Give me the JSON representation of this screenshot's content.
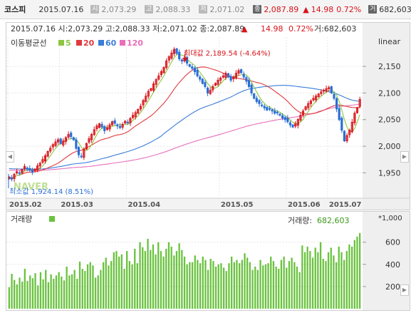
{
  "quote_bar": {
    "name": "코스피",
    "date": "2015.07.16",
    "items": [
      {
        "badge": "시",
        "value": "2,073.29"
      },
      {
        "badge": "고",
        "value": "2,088.33"
      },
      {
        "badge": "저",
        "value": "2,071.02"
      },
      {
        "badge": "종",
        "value": "2,087.89"
      }
    ],
    "change_arrow": "▲",
    "change": "14.98",
    "change_pct": "0.72%",
    "volume_badge": "거",
    "volume": "682,603"
  },
  "info_line": {
    "text": "2015.07.16  시:2,073.29  고:2,088.33  저:2,071.02  종:2,087.89",
    "arrow": "▲",
    "change": "14.98",
    "change_pct": "0.72%",
    "volume": "거:682,603"
  },
  "scale_label": "linear",
  "ma_legend": {
    "label": "이동평균선",
    "items": [
      {
        "name": "5",
        "color": "#8dc63f"
      },
      {
        "name": "20",
        "color": "#e03a3e"
      },
      {
        "name": "60",
        "color": "#3b7dd8"
      },
      {
        "name": "120",
        "color": "#e86fb9"
      }
    ]
  },
  "annotations": {
    "max": "최대값 2,189.54 (-4.64%)",
    "min": "최소값 1,924.14 (8.51%)",
    "watermark": "NAVER"
  },
  "volume_panel": {
    "title": "거래량",
    "current_label": "거래량:",
    "current_value": "682,603",
    "unit": "*1,000"
  },
  "colors": {
    "up": "#d8141b",
    "down": "#2a6fd6",
    "ma5": "#8dc63f",
    "ma20": "#e03a3e",
    "ma60": "#3b7dd8",
    "ma120": "#e86fb9",
    "volume_bar": "#6ac23f"
  },
  "chart_data": [
    {
      "type": "candlestick",
      "title": "",
      "x_tick_labels": [
        "2015.02",
        "2015.03",
        "2015.04",
        "2015.05",
        "2015.06",
        "2015.07"
      ],
      "y_ticks": [
        "1,950",
        "2,000",
        "2,050",
        "2,100",
        "2,150"
      ],
      "ylim": [
        1905,
        2205
      ],
      "grid": true,
      "series_close": [
        1942,
        1938,
        1947,
        1952,
        1950,
        1956,
        1962,
        1959,
        1955,
        1951,
        1957,
        1963,
        1968,
        1975,
        1982,
        1990,
        1996,
        2003,
        2008,
        2012,
        2005,
        2010,
        2016,
        2022,
        2018,
        2012,
        1996,
        1984,
        1980,
        1994,
        2005,
        2014,
        2022,
        2031,
        2038,
        2042,
        2036,
        2029,
        2034,
        2040,
        2046,
        2043,
        2038,
        2035,
        2041,
        2047,
        2044,
        2052,
        2058,
        2063,
        2069,
        2075,
        2086,
        2094,
        2103,
        2108,
        2117,
        2125,
        2132,
        2140,
        2148,
        2160,
        2168,
        2175,
        2182,
        2174,
        2164,
        2160,
        2165,
        2156,
        2150,
        2146,
        2140,
        2132,
        2126,
        2118,
        2112,
        2100,
        2105,
        2112,
        2118,
        2124,
        2128,
        2132,
        2137,
        2130,
        2124,
        2130,
        2137,
        2142,
        2138,
        2130,
        2122,
        2112,
        2100,
        2090,
        2084,
        2080,
        2076,
        2072,
        2068,
        2070,
        2066,
        2062,
        2063,
        2058,
        2053,
        2050,
        2046,
        2040,
        2036,
        2042,
        2050,
        2058,
        2066,
        2074,
        2080,
        2085,
        2090,
        2094,
        2098,
        2102,
        2105,
        2108,
        2110,
        2100,
        2090,
        2070,
        2050,
        2030,
        2010,
        2020,
        2030,
        2045,
        2062,
        2072,
        2087.89
      ],
      "max_value": 2189.54,
      "min_value": 1924.14
    },
    {
      "type": "bar",
      "title": "",
      "y_ticks": [
        "200",
        "400",
        "600"
      ],
      "ylim": [
        0,
        720
      ],
      "series": [
        {
          "name": "거래량",
          "values": [
            195,
            315,
            260,
            220,
            280,
            245,
            360,
            250,
            300,
            275,
            320,
            210,
            330,
            265,
            350,
            240,
            310,
            270,
            300,
            330,
            290,
            255,
            380,
            300,
            310,
            350,
            270,
            425,
            360,
            340,
            400,
            420,
            390,
            280,
            300,
            350,
            420,
            460,
            390,
            430,
            510,
            520,
            470,
            490,
            360,
            520,
            430,
            400,
            540,
            410,
            600,
            555,
            520,
            630,
            530,
            580,
            490,
            600,
            520,
            470,
            540,
            600,
            560,
            480,
            520,
            590,
            530,
            470,
            400,
            420,
            420,
            480,
            440,
            410,
            470,
            440,
            350,
            450,
            430,
            380,
            400,
            410,
            370,
            340,
            410,
            470,
            420,
            440,
            410,
            440,
            500,
            460,
            420,
            350,
            380,
            350,
            440,
            390,
            400,
            410,
            470,
            430,
            380,
            360,
            440,
            470,
            370,
            430,
            460,
            420,
            380,
            330,
            570,
            510,
            560,
            520,
            460,
            550,
            510,
            600,
            450,
            430,
            510,
            550,
            480,
            420,
            560,
            510,
            440,
            520,
            580,
            560,
            620,
            650,
            682.603
          ]
        }
      ],
      "current_value": 682.603
    }
  ]
}
